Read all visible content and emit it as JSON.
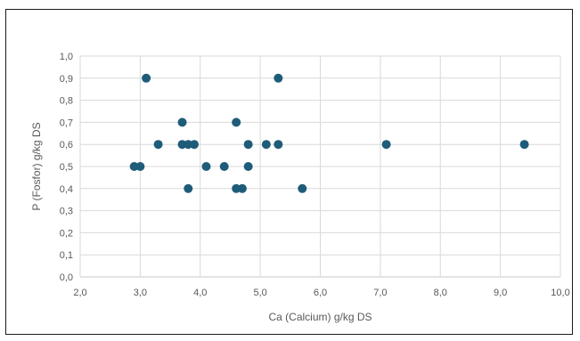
{
  "chart_data": {
    "type": "scatter",
    "title": "",
    "xlabel": "Ca (Calcium) g/kg DS",
    "ylabel": "P (Fosfor) g/kg DS",
    "xlim": [
      2.0,
      10.0
    ],
    "ylim": [
      0.0,
      1.0
    ],
    "x_ticks": [
      "2,0",
      "3,0",
      "4,0",
      "5,0",
      "6,0",
      "7,0",
      "8,0",
      "9,0",
      "10,0"
    ],
    "y_ticks": [
      "0,0",
      "0,1",
      "0,2",
      "0,3",
      "0,4",
      "0,5",
      "0,6",
      "0,7",
      "0,8",
      "0,9",
      "1,0"
    ],
    "grid": true,
    "legend": "none",
    "marker_color": "#1f5c7a",
    "points": [
      {
        "x": 3.1,
        "y": 0.9
      },
      {
        "x": 5.3,
        "y": 0.9
      },
      {
        "x": 3.7,
        "y": 0.7
      },
      {
        "x": 4.6,
        "y": 0.7
      },
      {
        "x": 3.3,
        "y": 0.6
      },
      {
        "x": 3.7,
        "y": 0.6
      },
      {
        "x": 3.8,
        "y": 0.6
      },
      {
        "x": 3.9,
        "y": 0.6
      },
      {
        "x": 4.8,
        "y": 0.6
      },
      {
        "x": 5.1,
        "y": 0.6
      },
      {
        "x": 5.3,
        "y": 0.6
      },
      {
        "x": 7.1,
        "y": 0.6
      },
      {
        "x": 9.4,
        "y": 0.6
      },
      {
        "x": 2.9,
        "y": 0.5
      },
      {
        "x": 3.0,
        "y": 0.5
      },
      {
        "x": 4.1,
        "y": 0.5
      },
      {
        "x": 4.4,
        "y": 0.5
      },
      {
        "x": 4.8,
        "y": 0.5
      },
      {
        "x": 3.8,
        "y": 0.4
      },
      {
        "x": 4.6,
        "y": 0.4
      },
      {
        "x": 4.7,
        "y": 0.4
      },
      {
        "x": 5.7,
        "y": 0.4
      }
    ]
  }
}
